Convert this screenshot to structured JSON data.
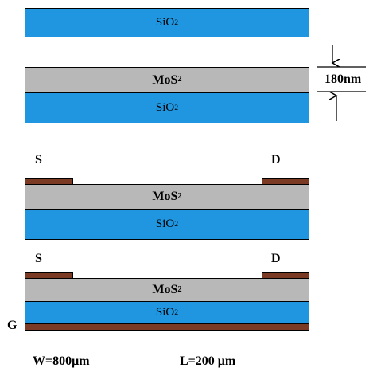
{
  "layers": {
    "sio2_base": "SiO",
    "mos2_base": "MoS",
    "subscript": "2"
  },
  "dimension": {
    "thickness": "180nm"
  },
  "electrodes": {
    "source": "S",
    "drain": "D",
    "gate": "G"
  },
  "params": {
    "width": "W=800μm",
    "length": "L=200 μm"
  },
  "colors": {
    "sio2": "#2196e0",
    "mos2": "#b8b8b8",
    "metal": "#7a3a24"
  }
}
